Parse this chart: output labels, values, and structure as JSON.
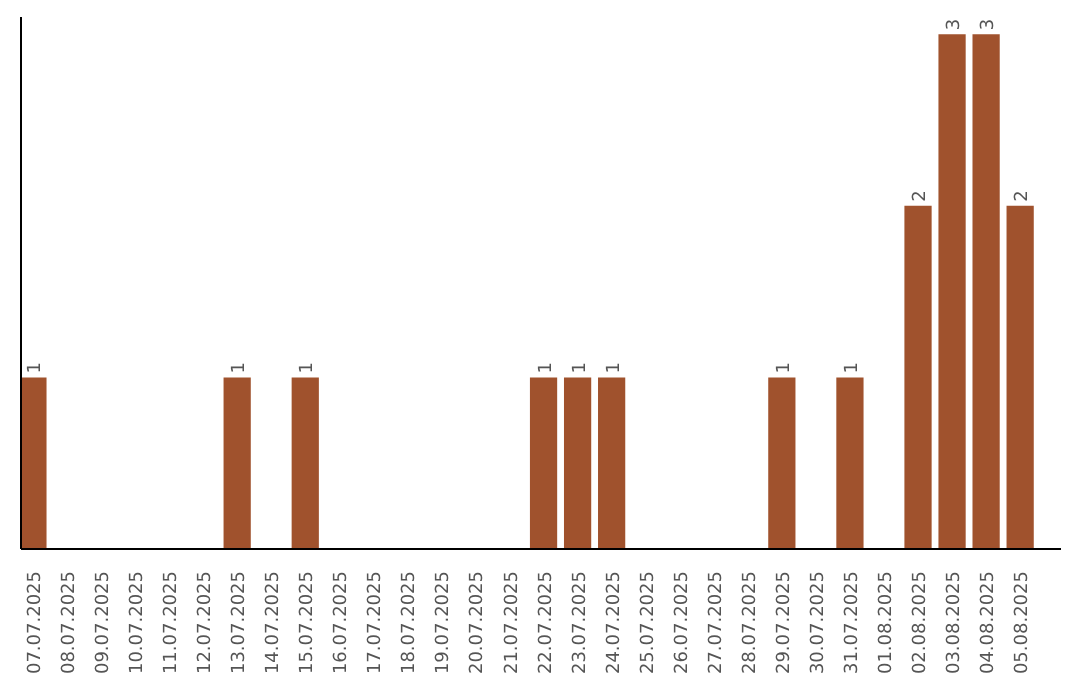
{
  "chart_data": {
    "type": "bar",
    "categories": [
      "07.07.2025",
      "08.07.2025",
      "09.07.2025",
      "10.07.2025",
      "11.07.2025",
      "12.07.2025",
      "13.07.2025",
      "14.07.2025",
      "15.07.2025",
      "16.07.2025",
      "17.07.2025",
      "18.07.2025",
      "19.07.2025",
      "20.07.2025",
      "21.07.2025",
      "22.07.2025",
      "23.07.2025",
      "24.07.2025",
      "25.07.2025",
      "26.07.2025",
      "27.07.2025",
      "28.07.2025",
      "29.07.2025",
      "30.07.2025",
      "31.07.2025",
      "01.08.2025",
      "02.08.2025",
      "03.08.2025",
      "04.08.2025",
      "05.08.2025"
    ],
    "values": [
      1,
      0,
      0,
      0,
      0,
      0,
      1,
      0,
      1,
      0,
      0,
      0,
      0,
      0,
      0,
      1,
      1,
      1,
      0,
      0,
      0,
      0,
      1,
      0,
      1,
      0,
      2,
      3,
      3,
      2
    ],
    "value_labels": [
      "1",
      null,
      null,
      null,
      null,
      null,
      "1",
      null,
      "1",
      null,
      null,
      null,
      null,
      null,
      null,
      "1",
      "1",
      "1",
      null,
      null,
      null,
      null,
      "1",
      null,
      "1",
      null,
      "2",
      "3",
      "3",
      "2"
    ],
    "color": "#a0522d",
    "ylim": [
      0,
      3.1
    ],
    "tick_labels": "x",
    "grid": false
  }
}
